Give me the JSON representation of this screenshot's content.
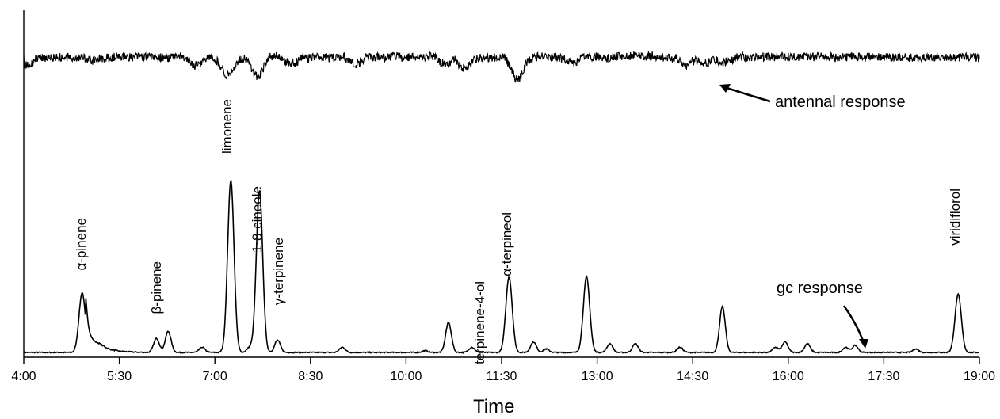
{
  "chart_data": {
    "type": "line",
    "xlabel": "Time",
    "x_unit": "minutes",
    "xlim": [
      "4:00",
      "19:00"
    ],
    "x_ticks": [
      "4:00",
      "5:30",
      "7:00",
      "8:30",
      "10:00",
      "11:30",
      "13:00",
      "14:30",
      "16:00",
      "17:30",
      "19:00"
    ],
    "series_labels": {
      "antennal": "antennal response",
      "gc": "gc response"
    },
    "gc_peaks": [
      {
        "label": "α-pinene",
        "time": "4:55",
        "rel_height": 0.34
      },
      {
        "label": "β-pinene",
        "time": "6:05",
        "rel_height": 0.08
      },
      {
        "label": "",
        "time": "6:16",
        "rel_height": 0.12
      },
      {
        "label": "limonene",
        "time": "7:15",
        "rel_height": 0.98
      },
      {
        "label": "1-8-cineole",
        "time": "7:42",
        "rel_height": 0.92
      },
      {
        "label": "γ-terpinene",
        "time": "7:59",
        "rel_height": 0.07
      },
      {
        "label": "terpinene-4-ol",
        "time": "11:02",
        "rel_height": 0.03
      },
      {
        "label": "α-terpineol",
        "time": "11:37",
        "rel_height": 0.43
      },
      {
        "label": "",
        "time": "10:40",
        "rel_height": 0.17
      },
      {
        "label": "",
        "time": "12:50",
        "rel_height": 0.43
      },
      {
        "label": "",
        "time": "14:58",
        "rel_height": 0.26
      },
      {
        "label": "viridiflorol",
        "time": "18:40",
        "rel_height": 0.33
      }
    ],
    "antennal_dips": [
      {
        "time": "7:40",
        "depth": 0.55
      },
      {
        "time": "11:45",
        "depth": 0.62
      },
      {
        "time": "10:55",
        "depth": 0.3
      }
    ],
    "grid": false,
    "colors": {
      "line": "#000000",
      "background": "#ffffff"
    }
  }
}
